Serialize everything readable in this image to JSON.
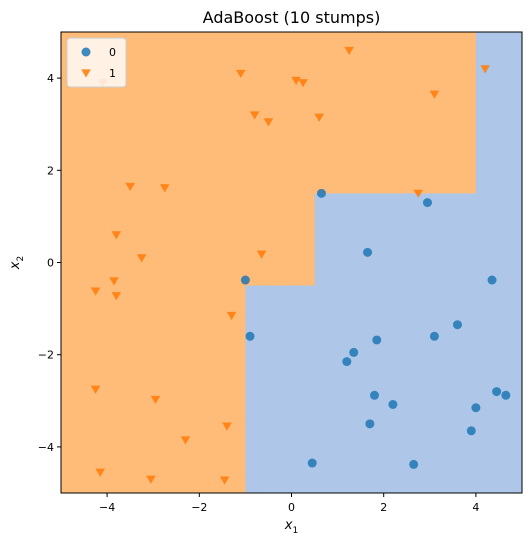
{
  "chart_data": {
    "type": "scatter",
    "title": "AdaBoost (10 stumps)",
    "xlabel": "x",
    "xlabel_sub": "1",
    "ylabel": "x",
    "ylabel_sub": "2",
    "xlim": [
      -5,
      5
    ],
    "ylim": [
      -5,
      5
    ],
    "xticks": [
      -4,
      -2,
      0,
      2,
      4
    ],
    "yticks": [
      -4,
      -2,
      0,
      2,
      4
    ],
    "xtick_labels": [
      "−4",
      "−2",
      "0",
      "2",
      "4"
    ],
    "ytick_labels": [
      "−4",
      "−2",
      "0",
      "2",
      "4"
    ],
    "grid": false,
    "legend_position": "top-left",
    "decision_regions": {
      "colors": {
        "class0": "#aec7e8",
        "class1": "#ffbb78"
      },
      "class1_polygon": [
        [
          -5,
          -5
        ],
        [
          -1,
          -5
        ],
        [
          -1,
          -0.5
        ],
        [
          0.5,
          -0.5
        ],
        [
          0.5,
          1.5
        ],
        [
          4,
          1.5
        ],
        [
          4,
          5
        ],
        [
          -5,
          5
        ]
      ]
    },
    "series": [
      {
        "name": "0",
        "marker": "circle",
        "color": "#1f77b4",
        "points": [
          [
            0.65,
            1.5
          ],
          [
            2.95,
            1.3
          ],
          [
            1.65,
            0.22
          ],
          [
            4.35,
            -0.38
          ],
          [
            -1.0,
            -0.38
          ],
          [
            -0.9,
            -1.6
          ],
          [
            3.6,
            -1.35
          ],
          [
            3.1,
            -1.6
          ],
          [
            1.85,
            -1.68
          ],
          [
            1.35,
            -1.95
          ],
          [
            1.2,
            -2.15
          ],
          [
            4.45,
            -2.8
          ],
          [
            4.65,
            -2.88
          ],
          [
            1.8,
            -2.88
          ],
          [
            2.2,
            -3.08
          ],
          [
            4.0,
            -3.15
          ],
          [
            1.7,
            -3.5
          ],
          [
            3.9,
            -3.65
          ],
          [
            0.45,
            -4.35
          ],
          [
            2.65,
            -4.38
          ]
        ]
      },
      {
        "name": "1",
        "marker": "triangle-down",
        "color": "#ff7f0e",
        "points": [
          [
            1.25,
            4.6
          ],
          [
            4.2,
            4.2
          ],
          [
            -1.1,
            4.1
          ],
          [
            -4.1,
            3.9
          ],
          [
            0.1,
            3.95
          ],
          [
            0.25,
            3.9
          ],
          [
            3.1,
            3.65
          ],
          [
            -0.8,
            3.2
          ],
          [
            0.6,
            3.15
          ],
          [
            -0.5,
            3.05
          ],
          [
            -3.5,
            1.65
          ],
          [
            -2.75,
            1.62
          ],
          [
            2.75,
            1.5
          ],
          [
            -3.8,
            0.6
          ],
          [
            -0.65,
            0.18
          ],
          [
            -3.25,
            0.1
          ],
          [
            -3.85,
            -0.4
          ],
          [
            -4.25,
            -0.62
          ],
          [
            -3.8,
            -0.72
          ],
          [
            -1.3,
            -1.15
          ],
          [
            -4.25,
            -2.75
          ],
          [
            -2.95,
            -2.97
          ],
          [
            -2.3,
            -3.85
          ],
          [
            -1.4,
            -3.55
          ],
          [
            -4.15,
            -4.55
          ],
          [
            -3.05,
            -4.7
          ],
          [
            -1.45,
            -4.72
          ]
        ]
      }
    ]
  }
}
